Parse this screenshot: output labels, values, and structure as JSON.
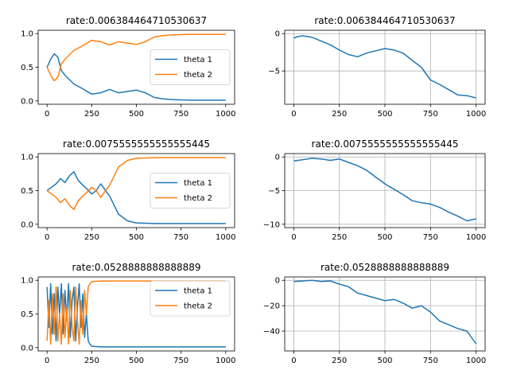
{
  "colors": {
    "theta1": "#1f77b4",
    "theta2": "#ff7f0e",
    "grid": "#b0b0b0"
  },
  "chart_data": [
    {
      "type": "line",
      "title": "rate:0.006384464710530637",
      "xlim": [
        0,
        1000
      ],
      "ylim": [
        0,
        1
      ],
      "xticks": [
        0,
        250,
        500,
        750,
        1000
      ],
      "yticks": [
        0.0,
        0.5,
        1.0
      ],
      "ytick_labels": [
        "0.0",
        "0.5",
        "1.0"
      ],
      "grid": false,
      "legend": "center right",
      "series": [
        {
          "name": "theta 1",
          "x": [
            0,
            20,
            40,
            60,
            80,
            100,
            150,
            200,
            250,
            300,
            350,
            400,
            450,
            500,
            550,
            600,
            650,
            700,
            800,
            900,
            1000
          ],
          "y": [
            0.5,
            0.62,
            0.7,
            0.65,
            0.45,
            0.38,
            0.25,
            0.18,
            0.1,
            0.12,
            0.17,
            0.12,
            0.14,
            0.16,
            0.12,
            0.05,
            0.03,
            0.02,
            0.01,
            0.01,
            0.01
          ]
        },
        {
          "name": "theta 2",
          "x": [
            0,
            20,
            40,
            60,
            80,
            100,
            150,
            200,
            250,
            300,
            350,
            400,
            450,
            500,
            550,
            600,
            650,
            700,
            800,
            900,
            1000
          ],
          "y": [
            0.5,
            0.38,
            0.3,
            0.35,
            0.55,
            0.62,
            0.75,
            0.82,
            0.9,
            0.88,
            0.83,
            0.88,
            0.86,
            0.84,
            0.88,
            0.95,
            0.97,
            0.98,
            0.99,
            0.99,
            0.99
          ]
        }
      ]
    },
    {
      "type": "line",
      "title": "rate:0.006384464710530637",
      "xlim": [
        0,
        1000
      ],
      "ylim": [
        -9,
        0
      ],
      "xticks": [
        0,
        250,
        500,
        750,
        1000
      ],
      "yticks": [
        -5,
        0
      ],
      "ytick_labels": [
        "−5",
        "0"
      ],
      "grid": true,
      "series": [
        {
          "x": [
            0,
            20,
            50,
            100,
            150,
            200,
            250,
            300,
            350,
            400,
            450,
            500,
            550,
            600,
            650,
            700,
            750,
            800,
            850,
            900,
            950,
            1000
          ],
          "y": [
            -0.6,
            -0.4,
            -0.3,
            -0.5,
            -1.0,
            -1.5,
            -2.2,
            -2.8,
            -3.1,
            -2.6,
            -2.3,
            -2.0,
            -2.2,
            -2.6,
            -3.6,
            -4.5,
            -6.2,
            -6.8,
            -7.5,
            -8.2,
            -8.3,
            -8.6
          ]
        }
      ]
    },
    {
      "type": "line",
      "title": "rate:0.0075555555555555445",
      "xlim": [
        0,
        1000
      ],
      "ylim": [
        0,
        1
      ],
      "xticks": [
        0,
        250,
        500,
        750,
        1000
      ],
      "yticks": [
        0.0,
        0.5,
        1.0
      ],
      "ytick_labels": [
        "0.0",
        "0.5",
        "1.0"
      ],
      "grid": false,
      "legend": "center right",
      "series": [
        {
          "name": "theta 1",
          "x": [
            0,
            25,
            50,
            75,
            100,
            125,
            150,
            175,
            200,
            225,
            250,
            275,
            300,
            350,
            400,
            450,
            500,
            600,
            700,
            800,
            1000
          ],
          "y": [
            0.5,
            0.55,
            0.6,
            0.68,
            0.62,
            0.72,
            0.78,
            0.65,
            0.58,
            0.52,
            0.45,
            0.5,
            0.6,
            0.42,
            0.15,
            0.05,
            0.02,
            0.01,
            0.01,
            0.01,
            0.01
          ]
        },
        {
          "name": "theta 2",
          "x": [
            0,
            25,
            50,
            75,
            100,
            125,
            150,
            175,
            200,
            225,
            250,
            275,
            300,
            350,
            400,
            450,
            500,
            600,
            700,
            800,
            1000
          ],
          "y": [
            0.5,
            0.45,
            0.4,
            0.32,
            0.38,
            0.28,
            0.22,
            0.35,
            0.42,
            0.48,
            0.55,
            0.5,
            0.4,
            0.58,
            0.85,
            0.95,
            0.98,
            0.99,
            0.99,
            0.99,
            0.99
          ]
        }
      ]
    },
    {
      "type": "line",
      "title": "rate:0.0075555555555555445",
      "xlim": [
        0,
        1000
      ],
      "ylim": [
        -10,
        0
      ],
      "xticks": [
        0,
        250,
        500,
        750,
        1000
      ],
      "yticks": [
        -10,
        -5,
        0
      ],
      "ytick_labels": [
        "−10",
        "−5",
        "0"
      ],
      "grid": true,
      "series": [
        {
          "x": [
            0,
            50,
            100,
            150,
            200,
            250,
            300,
            350,
            400,
            450,
            500,
            550,
            600,
            650,
            700,
            750,
            800,
            850,
            900,
            950,
            1000
          ],
          "y": [
            -0.6,
            -0.4,
            -0.2,
            -0.3,
            -0.5,
            -0.3,
            -0.8,
            -1.3,
            -2.0,
            -3.0,
            -4.0,
            -4.8,
            -5.6,
            -6.5,
            -6.8,
            -7.0,
            -7.5,
            -8.2,
            -8.8,
            -9.5,
            -9.2
          ]
        }
      ]
    },
    {
      "type": "line",
      "title": "rate:0.0528888888888889",
      "xlim": [
        0,
        1000
      ],
      "ylim": [
        0,
        1
      ],
      "xticks": [
        0,
        250,
        500,
        750,
        1000
      ],
      "yticks": [
        0.0,
        0.5,
        1.0
      ],
      "ytick_labels": [
        "0.0",
        "0.5",
        "1.0"
      ],
      "grid": false,
      "legend": "upper right",
      "series": [
        {
          "name": "theta 1",
          "x": [
            0,
            10,
            20,
            30,
            40,
            50,
            60,
            70,
            80,
            90,
            100,
            110,
            120,
            130,
            140,
            150,
            160,
            170,
            180,
            190,
            200,
            210,
            220,
            230,
            240,
            250,
            300,
            400,
            500,
            1000
          ],
          "y": [
            0.9,
            0.3,
            0.95,
            0.2,
            0.8,
            0.1,
            0.9,
            0.5,
            0.95,
            0.2,
            0.85,
            0.4,
            0.95,
            0.15,
            0.7,
            0.9,
            0.1,
            0.6,
            0.95,
            0.3,
            0.8,
            0.15,
            0.5,
            0.1,
            0.05,
            0.02,
            0.01,
            0.01,
            0.01,
            0.01
          ]
        },
        {
          "name": "theta 2",
          "x": [
            0,
            10,
            20,
            30,
            40,
            50,
            60,
            70,
            80,
            90,
            100,
            110,
            120,
            130,
            140,
            150,
            160,
            170,
            180,
            190,
            200,
            210,
            220,
            230,
            240,
            250,
            300,
            400,
            500,
            1000
          ],
          "y": [
            0.1,
            0.7,
            0.05,
            0.8,
            0.2,
            0.9,
            0.1,
            0.5,
            0.05,
            0.8,
            0.15,
            0.6,
            0.05,
            0.85,
            0.3,
            0.1,
            0.9,
            0.4,
            0.05,
            0.7,
            0.2,
            0.85,
            0.5,
            0.9,
            0.95,
            0.98,
            0.99,
            0.99,
            0.99,
            0.99
          ]
        }
      ]
    },
    {
      "type": "line",
      "title": "rate:0.0528888888888889",
      "xlim": [
        0,
        1000
      ],
      "ylim": [
        -53,
        0
      ],
      "xticks": [
        0,
        250,
        500,
        750,
        1000
      ],
      "yticks": [
        -40,
        -20,
        0
      ],
      "ytick_labels": [
        "−40",
        "−20",
        "0"
      ],
      "grid": true,
      "series": [
        {
          "x": [
            0,
            50,
            100,
            150,
            200,
            250,
            300,
            350,
            400,
            450,
            500,
            550,
            600,
            650,
            700,
            750,
            800,
            850,
            900,
            950,
            1000
          ],
          "y": [
            -1,
            -0.5,
            0,
            -1,
            -0.5,
            -3,
            -5,
            -10,
            -12,
            -14,
            -16,
            -15,
            -18,
            -22,
            -20,
            -25,
            -32,
            -35,
            -38,
            -40,
            -50
          ]
        }
      ]
    }
  ]
}
